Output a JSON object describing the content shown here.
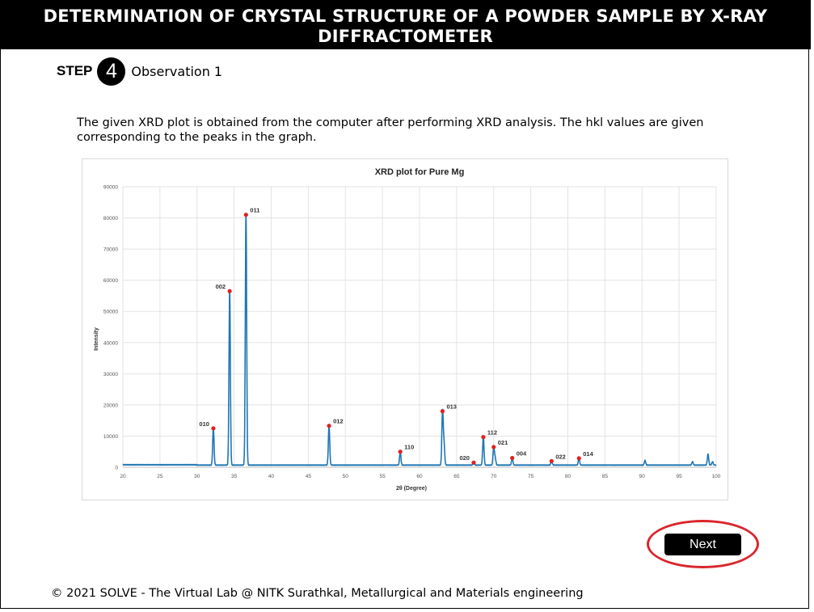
{
  "header": {
    "title": "DETERMINATION OF CRYSTAL STRUCTURE OF A POWDER SAMPLE BY X-RAY DIFFRACTOMETER"
  },
  "step": {
    "label": "STEP",
    "number": "4",
    "title": "Observation 1"
  },
  "description": "The given XRD plot is obtained from the computer after performing XRD analysis. The hkl values are given corresponding to the peaks in the graph.",
  "chart_data": {
    "type": "line",
    "title": "XRD plot for Pure Mg",
    "xlabel": "2θ (Degree)",
    "ylabel": "Intensity",
    "xlim": [
      20,
      100
    ],
    "ylim": [
      0,
      90000
    ],
    "grid": true,
    "xticks": [
      20,
      25,
      30,
      35,
      40,
      45,
      50,
      55,
      60,
      65,
      70,
      75,
      80,
      85,
      90,
      95,
      100
    ],
    "yticks": [
      0,
      10000,
      20000,
      30000,
      40000,
      50000,
      60000,
      70000,
      80000,
      90000
    ],
    "line_color": "#1f77b4",
    "marker_color": "#e02020",
    "background_level": 700,
    "peaks": [
      {
        "x": 32.2,
        "y": 12500,
        "label": "010"
      },
      {
        "x": 34.4,
        "y": 56500,
        "label": "002"
      },
      {
        "x": 36.6,
        "y": 81000,
        "label": "011"
      },
      {
        "x": 47.8,
        "y": 13300,
        "label": "012"
      },
      {
        "x": 57.4,
        "y": 5000,
        "label": "110"
      },
      {
        "x": 63.1,
        "y": 18000,
        "label": "013"
      },
      {
        "x": 67.3,
        "y": 1500,
        "label": "020"
      },
      {
        "x": 68.6,
        "y": 9700,
        "label": "112"
      },
      {
        "x": 70.0,
        "y": 6500,
        "label": "021"
      },
      {
        "x": 72.5,
        "y": 3000,
        "label": "004"
      },
      {
        "x": 77.8,
        "y": 2000,
        "label": "022"
      },
      {
        "x": 81.5,
        "y": 2900,
        "label": "014"
      }
    ],
    "minor_peaks": [
      {
        "x": 63.3,
        "y": 7500
      },
      {
        "x": 70.2,
        "y": 3000
      },
      {
        "x": 90.4,
        "y": 2200
      },
      {
        "x": 96.8,
        "y": 1800
      },
      {
        "x": 98.9,
        "y": 4200
      },
      {
        "x": 99.5,
        "y": 1800
      }
    ]
  },
  "next_button": {
    "label": "Next"
  },
  "footer": "© 2021 SOLVE - The Virtual Lab @ NITK Surathkal, Metallurgical and Materials engineering"
}
